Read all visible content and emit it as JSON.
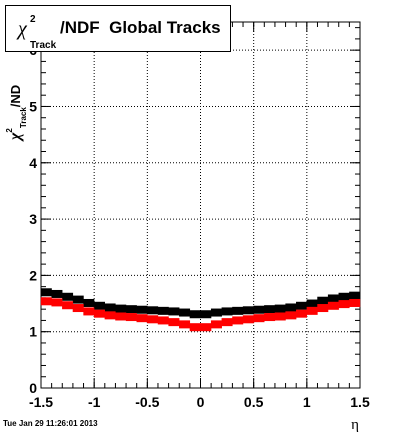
{
  "title": {
    "symbol": "χ",
    "superscript": "2",
    "subscript": "Track",
    "rest": "/NDF  Global Tracks"
  },
  "timestamp": "Tue Jan 29 11:26:01 2013",
  "chart_data": {
    "type": "scatter",
    "xlabel": "η",
    "ylabel": {
      "symbol": "χ",
      "superscript": "2",
      "subscript": "Track",
      "rest": "/ND"
    },
    "xlim": [
      -1.5,
      1.5
    ],
    "ylim": [
      0,
      6.5
    ],
    "x_ticks": [
      "-1.5",
      "-1",
      "-0.5",
      "0",
      "0.5",
      "1",
      "1.5"
    ],
    "y_ticks": [
      "0",
      "1",
      "2",
      "3",
      "4",
      "5",
      "6"
    ],
    "grid": true,
    "series": [
      {
        "color": "#000000",
        "x": [
          -1.45,
          -1.35,
          -1.25,
          -1.15,
          -1.05,
          -0.95,
          -0.85,
          -0.75,
          -0.65,
          -0.55,
          -0.45,
          -0.35,
          -0.25,
          -0.15,
          -0.05,
          0.05,
          0.15,
          0.25,
          0.35,
          0.45,
          0.55,
          0.65,
          0.75,
          0.85,
          0.95,
          1.05,
          1.15,
          1.25,
          1.35,
          1.45
        ],
        "y": [
          1.7,
          1.67,
          1.62,
          1.57,
          1.51,
          1.46,
          1.43,
          1.41,
          1.4,
          1.39,
          1.38,
          1.37,
          1.36,
          1.34,
          1.31,
          1.31,
          1.34,
          1.36,
          1.37,
          1.38,
          1.39,
          1.4,
          1.41,
          1.43,
          1.46,
          1.5,
          1.55,
          1.59,
          1.62,
          1.64
        ]
      },
      {
        "color": "#ff0000",
        "x": [
          -1.45,
          -1.35,
          -1.25,
          -1.15,
          -1.05,
          -0.95,
          -0.85,
          -0.75,
          -0.65,
          -0.55,
          -0.45,
          -0.35,
          -0.25,
          -0.15,
          -0.05,
          0.05,
          0.15,
          0.25,
          0.35,
          0.45,
          0.55,
          0.65,
          0.75,
          0.85,
          0.95,
          1.05,
          1.15,
          1.25,
          1.35,
          1.45
        ],
        "y": [
          1.54,
          1.52,
          1.47,
          1.42,
          1.36,
          1.32,
          1.29,
          1.27,
          1.26,
          1.24,
          1.22,
          1.2,
          1.17,
          1.13,
          1.08,
          1.08,
          1.13,
          1.17,
          1.2,
          1.22,
          1.24,
          1.26,
          1.27,
          1.29,
          1.32,
          1.37,
          1.42,
          1.46,
          1.49,
          1.51
        ]
      }
    ]
  }
}
